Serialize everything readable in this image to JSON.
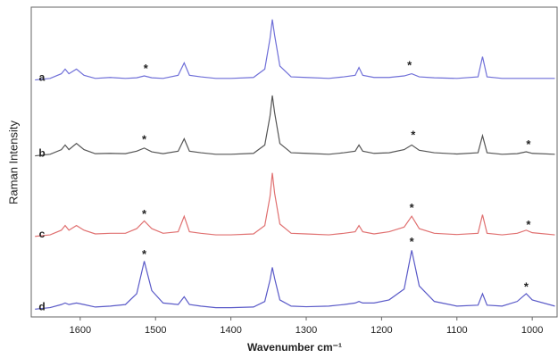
{
  "chart_data": {
    "type": "line",
    "x_label": "Wavenumber cm⁻¹",
    "y_label": "Raman Intensity",
    "x": [
      1660,
      1640,
      1625,
      1620,
      1615,
      1605,
      1595,
      1580,
      1560,
      1540,
      1525,
      1515,
      1505,
      1490,
      1470,
      1462,
      1455,
      1440,
      1420,
      1400,
      1370,
      1355,
      1348,
      1345,
      1342,
      1335,
      1320,
      1300,
      1270,
      1250,
      1235,
      1230,
      1225,
      1210,
      1190,
      1170,
      1160,
      1150,
      1130,
      1100,
      1072,
      1066,
      1060,
      1040,
      1020,
      1008,
      1000,
      970
    ],
    "series": [
      {
        "name": "a",
        "color": "#6f6fd8",
        "values": [
          76.5,
          77,
          78.5,
          80,
          78.5,
          80,
          78,
          77,
          77.3,
          77,
          77.2,
          77.8,
          77.2,
          77,
          78,
          82,
          78,
          77.5,
          77,
          77,
          77.3,
          80,
          90,
          96,
          91,
          81,
          77.5,
          77.3,
          77,
          77.5,
          78,
          80.5,
          78,
          77.3,
          77.3,
          77.8,
          78.5,
          77.5,
          77.2,
          77,
          77.5,
          84,
          77.5,
          77,
          77,
          77,
          77,
          77
        ]
      },
      {
        "name": "b",
        "color": "#555555",
        "values": [
          52,
          52.5,
          54,
          55.5,
          54,
          56,
          54,
          52.7,
          52.8,
          52.7,
          53.5,
          54.5,
          53.3,
          52.7,
          53.5,
          57.5,
          53.5,
          53,
          52.5,
          52.5,
          52.8,
          55.5,
          65,
          71.5,
          66,
          56,
          53,
          52.8,
          52.5,
          53,
          53.5,
          55.5,
          53.5,
          52.8,
          53,
          54,
          55.5,
          53.8,
          53,
          52.6,
          53,
          58.5,
          53,
          52.5,
          52.7,
          53.3,
          52.8,
          52.5
        ]
      },
      {
        "name": "c",
        "color": "#e07070",
        "values": [
          26,
          26.5,
          28,
          29.5,
          28,
          29.5,
          28,
          26.8,
          27,
          27,
          28.5,
          31,
          28.5,
          27,
          27.5,
          32.5,
          27.5,
          27,
          26.5,
          26.5,
          26.8,
          29.5,
          39,
          46.5,
          40,
          30,
          27,
          26.8,
          26.5,
          27,
          27.5,
          29.5,
          27.5,
          26.8,
          27.5,
          29,
          32.5,
          28.5,
          27,
          26.6,
          27,
          33,
          27,
          26.5,
          27,
          28,
          27.2,
          26.5
        ]
      },
      {
        "name": "d",
        "color": "#5a5ac8",
        "values": [
          2.5,
          3,
          4,
          4.5,
          4,
          4.5,
          4,
          3.2,
          3.5,
          4,
          7.5,
          18,
          8.5,
          4.5,
          4,
          6.5,
          4,
          3.5,
          3,
          3,
          3.2,
          5,
          12,
          16,
          12.5,
          5.5,
          3.5,
          3.3,
          3.5,
          4,
          4.5,
          5,
          4.5,
          4.5,
          5.5,
          9,
          21.5,
          10,
          5,
          3.5,
          3.8,
          7.5,
          3.8,
          3.5,
          5,
          7.5,
          5.5,
          3.5
        ]
      }
    ],
    "annotations": [
      {
        "text": "*",
        "x": 1513,
        "y": 80
      },
      {
        "text": "*",
        "x": 1163,
        "y": 81
      },
      {
        "text": "*",
        "x": 1515,
        "y": 57
      },
      {
        "text": "*",
        "x": 1158,
        "y": 58.5
      },
      {
        "text": "*",
        "x": 1005,
        "y": 55.5
      },
      {
        "text": "*",
        "x": 1515,
        "y": 33
      },
      {
        "text": "*",
        "x": 1160,
        "y": 35
      },
      {
        "text": "*",
        "x": 1005,
        "y": 29.5
      },
      {
        "text": "*",
        "x": 1515,
        "y": 20
      },
      {
        "text": "*",
        "x": 1160,
        "y": 24
      },
      {
        "text": "*",
        "x": 1008,
        "y": 9.5
      }
    ],
    "xlim": [
      1665,
      967
    ],
    "ylim": [
      0,
      100
    ],
    "xticks": [
      1600,
      1500,
      1400,
      1300,
      1200,
      1100,
      1000
    ]
  }
}
